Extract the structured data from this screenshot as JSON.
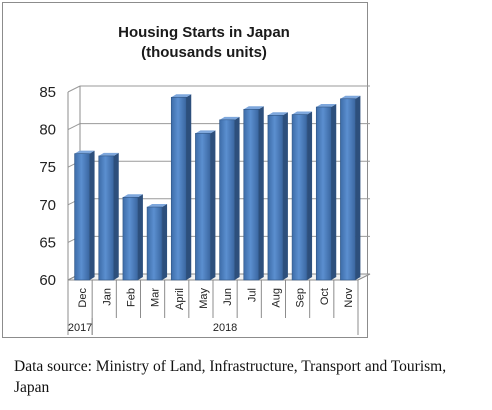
{
  "chart_data": {
    "type": "bar",
    "title": [
      "Housing Starts in Japan",
      "(thousands units)"
    ],
    "categories": [
      "Dec",
      "Jan",
      "Feb",
      "Mar",
      "April",
      "May",
      "Jun",
      "Jul",
      "Aug",
      "Sep",
      "Oct",
      "Nov"
    ],
    "values": [
      76.8,
      76.5,
      71,
      69.7,
      84.3,
      79.5,
      81.3,
      82.7,
      81.9,
      82,
      83,
      84.1
    ],
    "year_groups": [
      {
        "label": "2017",
        "start": 0,
        "end": 0
      },
      {
        "label": "2018",
        "start": 1,
        "end": 11
      }
    ],
    "ylim": [
      60,
      85
    ],
    "yticks": [
      60,
      65,
      70,
      75,
      80,
      85
    ],
    "grid": true,
    "bar_color": "#4f81bd"
  },
  "source_note": "Data source: Ministry of Land, Infrastructure, Transport and Tourism, Japan"
}
